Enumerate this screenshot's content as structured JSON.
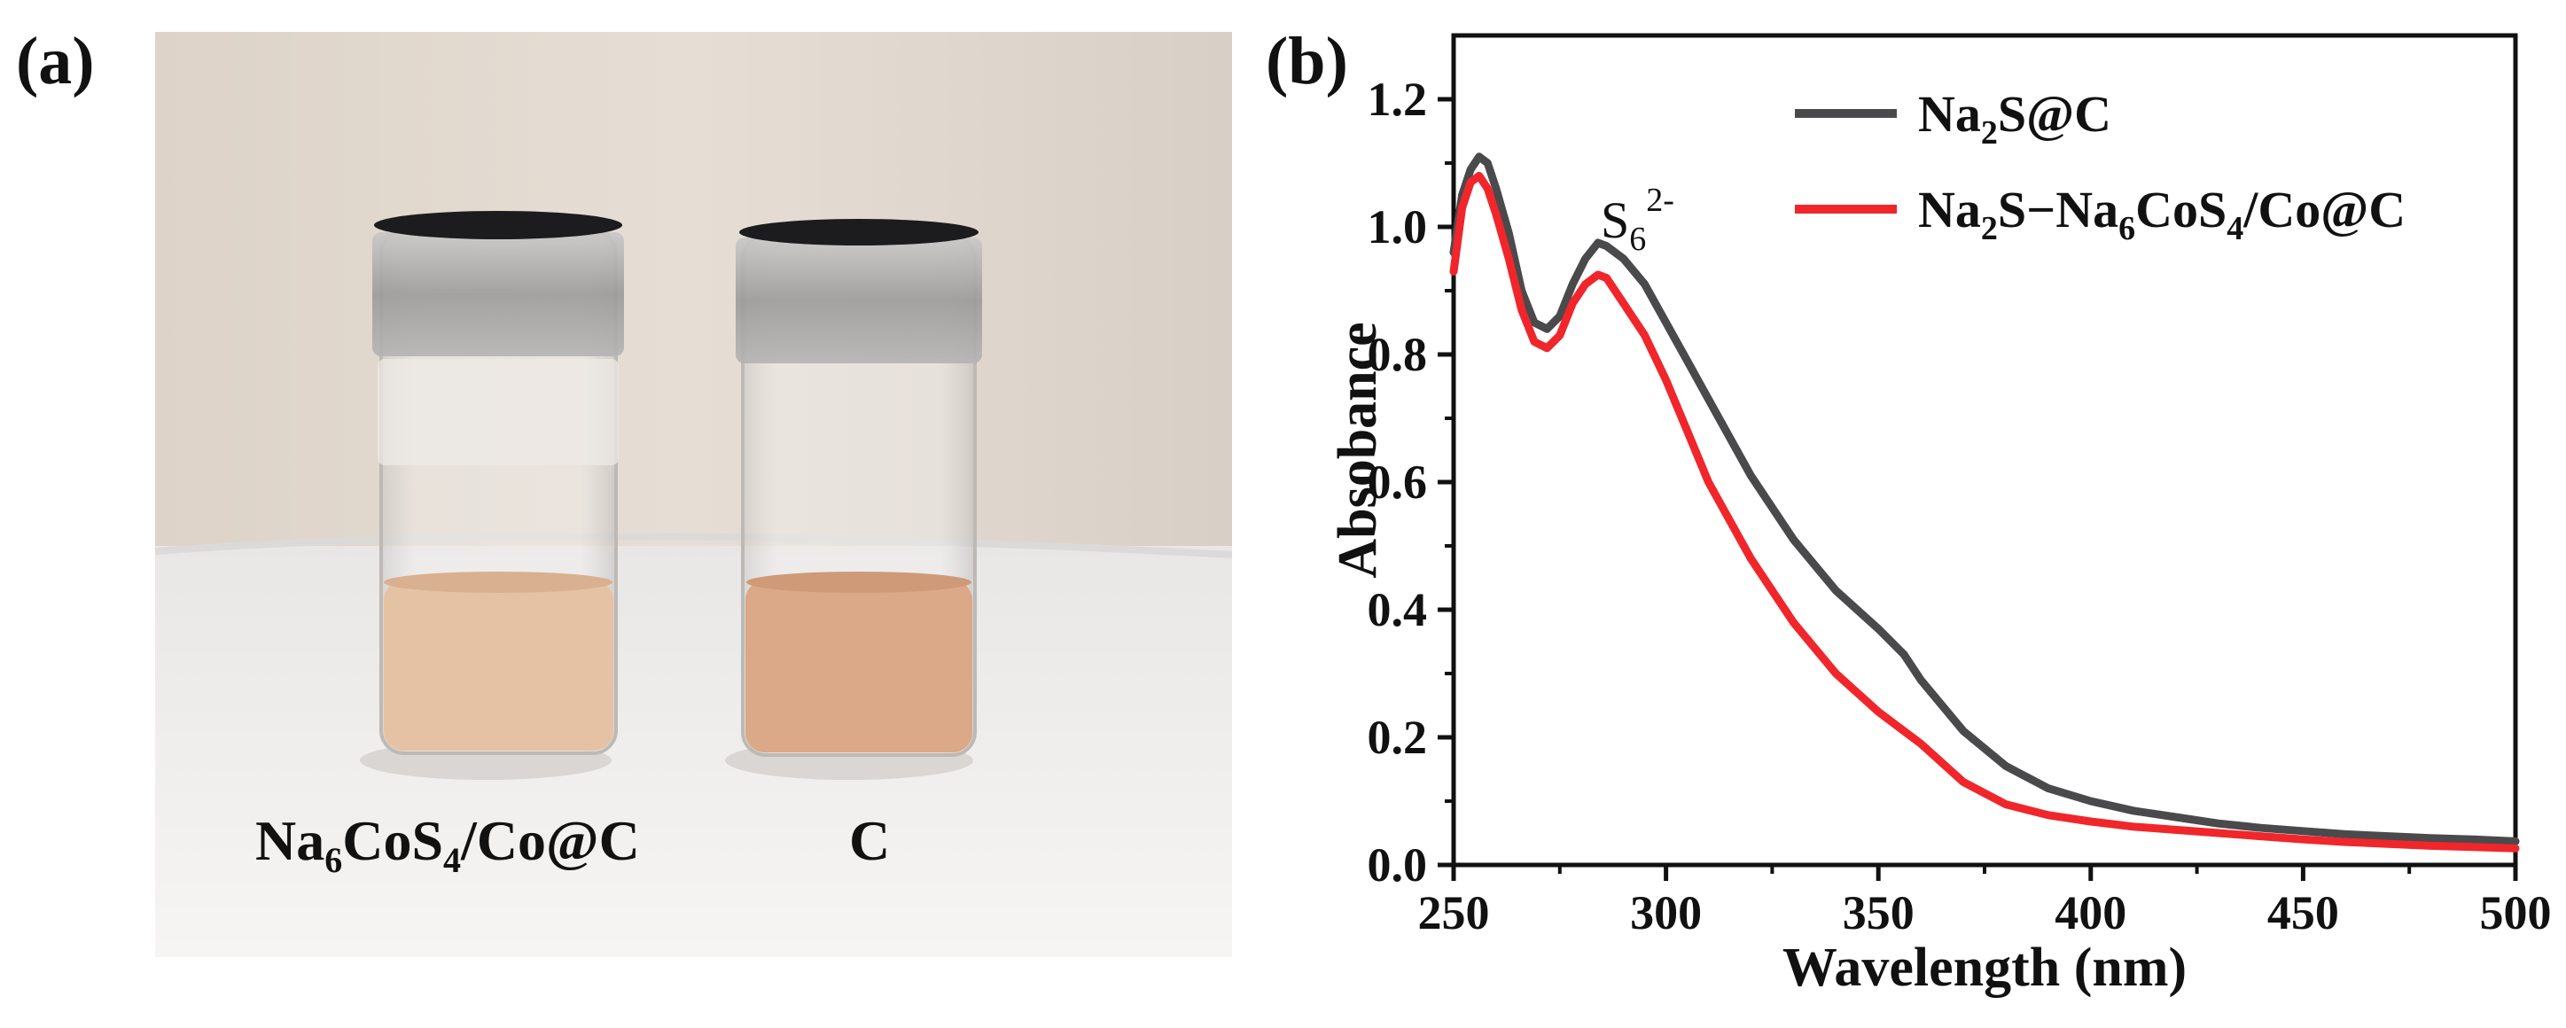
{
  "panels": {
    "a": {
      "label": "(a)",
      "vial_labels": {
        "left_main": "Na",
        "left_sub1": "6",
        "left_mid": "CoS",
        "left_sub2": "4",
        "left_tail": "/Co@C",
        "right": "C"
      }
    },
    "b": {
      "label": "(b)"
    }
  },
  "colors": {
    "series1": "#4a4a4c",
    "series2": "#f0262b",
    "solution_left": "#e6c2a4",
    "solution_right": "#dba888",
    "wall": "#e3dbd2",
    "cloth": "#f1f0ef"
  },
  "chart_data": {
    "type": "line",
    "title": "",
    "xlabel": "Wavelength (nm)",
    "ylabel": "Absobance",
    "xlim": [
      250,
      500
    ],
    "ylim": [
      0,
      1.3
    ],
    "xticks": [
      "250",
      "300",
      "350",
      "400",
      "450",
      "500"
    ],
    "yticks": [
      "0.0",
      "0.2",
      "0.4",
      "0.6",
      "0.8",
      "1.0",
      "1.2"
    ],
    "grid": false,
    "legend_position": "top-right",
    "legend": {
      "series1": {
        "main": "Na",
        "sub": "2",
        "tail": "S@C"
      },
      "series2": {
        "main": "Na",
        "sub1": "2",
        "mid": "S−Na",
        "sub2": "6",
        "mid2": "CoS",
        "sub3": "4",
        "tail": "/Co@C"
      }
    },
    "annotation": {
      "main": "S",
      "sub": "6",
      "sup": "2-"
    },
    "series": [
      {
        "name": "Na2S@C",
        "x": [
          250,
          252,
          254,
          256,
          258,
          260,
          263,
          266,
          269,
          272,
          275,
          278,
          281,
          284,
          286,
          290,
          295,
          300,
          305,
          310,
          320,
          330,
          340,
          350,
          356,
          360,
          370,
          380,
          390,
          400,
          410,
          420,
          430,
          440,
          450,
          460,
          470,
          480,
          490,
          500
        ],
        "values": [
          0.96,
          1.05,
          1.09,
          1.11,
          1.1,
          1.06,
          0.99,
          0.9,
          0.85,
          0.84,
          0.86,
          0.91,
          0.95,
          0.975,
          0.97,
          0.95,
          0.91,
          0.85,
          0.79,
          0.73,
          0.61,
          0.51,
          0.43,
          0.37,
          0.33,
          0.29,
          0.21,
          0.155,
          0.12,
          0.1,
          0.085,
          0.075,
          0.065,
          0.058,
          0.053,
          0.048,
          0.045,
          0.042,
          0.04,
          0.037
        ]
      },
      {
        "name": "Na2S−Na6CoS4/Co@C",
        "x": [
          250,
          252,
          254,
          256,
          258,
          260,
          263,
          266,
          269,
          272,
          275,
          278,
          281,
          284,
          286,
          290,
          295,
          300,
          305,
          310,
          320,
          330,
          340,
          350,
          360,
          370,
          380,
          390,
          400,
          410,
          420,
          430,
          440,
          450,
          460,
          470,
          480,
          490,
          500
        ],
        "values": [
          0.93,
          1.03,
          1.07,
          1.08,
          1.06,
          1.02,
          0.95,
          0.87,
          0.82,
          0.81,
          0.83,
          0.88,
          0.91,
          0.925,
          0.92,
          0.88,
          0.83,
          0.76,
          0.68,
          0.6,
          0.48,
          0.38,
          0.3,
          0.24,
          0.19,
          0.13,
          0.095,
          0.078,
          0.068,
          0.06,
          0.055,
          0.05,
          0.045,
          0.04,
          0.036,
          0.033,
          0.03,
          0.028,
          0.026
        ]
      }
    ]
  }
}
